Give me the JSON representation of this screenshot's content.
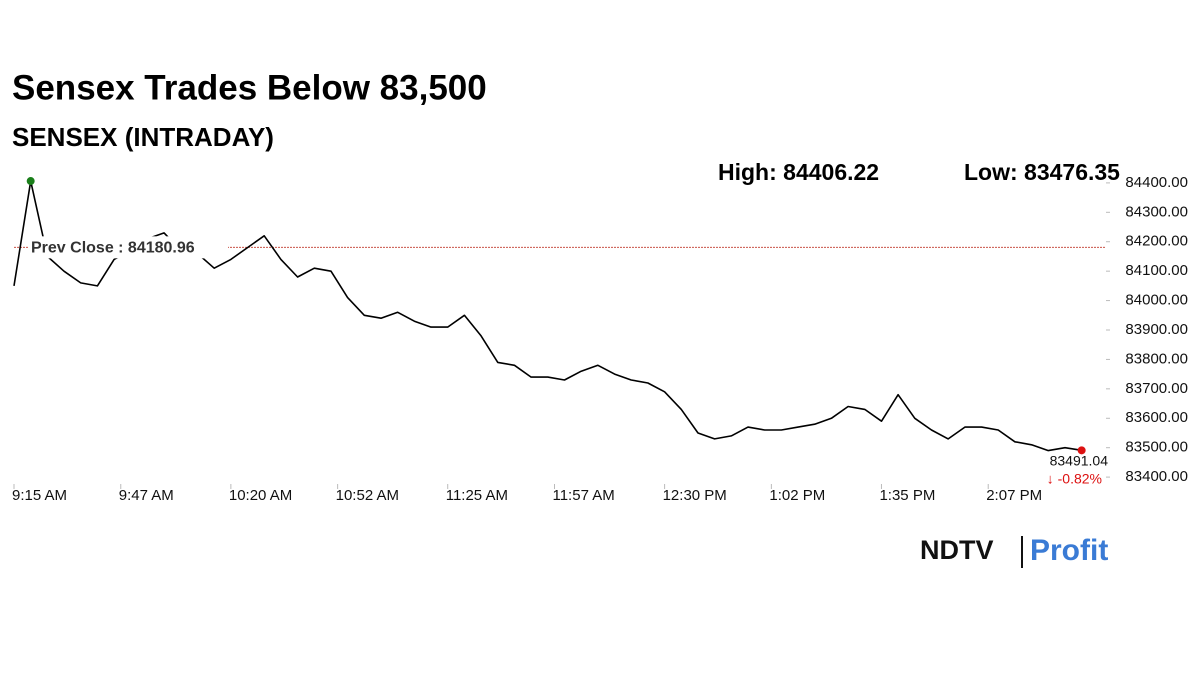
{
  "chart_data": {
    "type": "line",
    "title": "Sensex Trades Below 83,500",
    "subtitle": "SENSEX (INTRADAY)",
    "high": {
      "value": 84406.22,
      "label": "High: 84406.22"
    },
    "low": {
      "value": 83476.35,
      "label": "Low: 83476.35"
    },
    "prev_close": {
      "value": 84180.96,
      "label": "Prev Close : 84180.96"
    },
    "last": 83491.04,
    "change": {
      "value": -0.82,
      "label": "↓ -0.82%"
    },
    "color": "#000000",
    "x": [
      "9:15 AM",
      "9:20 AM",
      "9:25 AM",
      "9:30 AM",
      "9:35 AM",
      "9:40 AM",
      "9:45 AM",
      "9:50 AM",
      "9:55 AM",
      "10:00 AM",
      "10:05 AM",
      "10:10 AM",
      "10:15 AM",
      "10:20 AM",
      "10:25 AM",
      "10:30 AM",
      "10:35 AM",
      "10:40 AM",
      "10:45 AM",
      "10:50 AM",
      "10:55 AM",
      "11:00 AM",
      "11:05 AM",
      "11:10 AM",
      "11:15 AM",
      "11:20 AM",
      "11:25 AM",
      "11:30 AM",
      "11:35 AM",
      "11:40 AM",
      "11:45 AM",
      "11:50 AM",
      "11:55 AM",
      "12:00 PM",
      "12:05 PM",
      "12:10 PM",
      "12:15 PM",
      "12:20 PM",
      "12:25 PM",
      "12:30 PM",
      "12:35 PM",
      "12:40 PM",
      "12:45 PM",
      "12:50 PM",
      "12:55 PM",
      "1:00 PM",
      "1:05 PM",
      "1:10 PM",
      "1:15 PM",
      "1:20 PM",
      "1:25 PM",
      "1:30 PM",
      "1:35 PM",
      "1:40 PM",
      "1:45 PM",
      "1:50 PM",
      "1:55 PM",
      "2:00 PM",
      "2:05 PM",
      "2:10 PM",
      "2:15 PM",
      "2:20 PM",
      "2:25 PM",
      "2:30 PM",
      "2:35 PM"
    ],
    "values": [
      84050,
      84406.22,
      84150,
      84100,
      84060,
      84050,
      84140,
      84170,
      84210,
      84230,
      84170,
      84160,
      84110,
      84140,
      84180,
      84220,
      84140,
      84080,
      84110,
      84100,
      84010,
      83950,
      83940,
      83960,
      83930,
      83910,
      83910,
      83950,
      83880,
      83790,
      83780,
      83740,
      83740,
      83730,
      83760,
      83780,
      83750,
      83730,
      83720,
      83690,
      83630,
      83550,
      83530,
      83540,
      83570,
      83560,
      83560,
      83570,
      83580,
      83600,
      83640,
      83630,
      83590,
      83680,
      83600,
      83560,
      83530,
      83570,
      83570,
      83560,
      83520,
      83510,
      83490,
      83500,
      83491.04
    ],
    "xlim": [
      "9:15 AM",
      "2:42 PM"
    ],
    "xticks": [
      "9:15 AM",
      "9:47 AM",
      "10:20 AM",
      "10:52 AM",
      "11:25 AM",
      "11:57 AM",
      "12:30 PM",
      "1:02 PM",
      "1:35 PM",
      "2:07 PM"
    ],
    "ylim": [
      83380,
      84420
    ],
    "yticks": [
      {
        "value": 84400,
        "label": "84400.00"
      },
      {
        "value": 84300,
        "label": "84300.00"
      },
      {
        "value": 84200,
        "label": "84200.00"
      },
      {
        "value": 84100,
        "label": "84100.00"
      },
      {
        "value": 84000,
        "label": "84000.00"
      },
      {
        "value": 83900,
        "label": "83900.00"
      },
      {
        "value": 83800,
        "label": "83800.00"
      },
      {
        "value": 83700,
        "label": "83700.00"
      },
      {
        "value": 83600,
        "label": "83600.00"
      },
      {
        "value": 83500,
        "label": "83500.00"
      },
      {
        "value": 83400,
        "label": "83400.00"
      }
    ],
    "brand": {
      "name": "NDTV",
      "product": "Profit"
    }
  }
}
